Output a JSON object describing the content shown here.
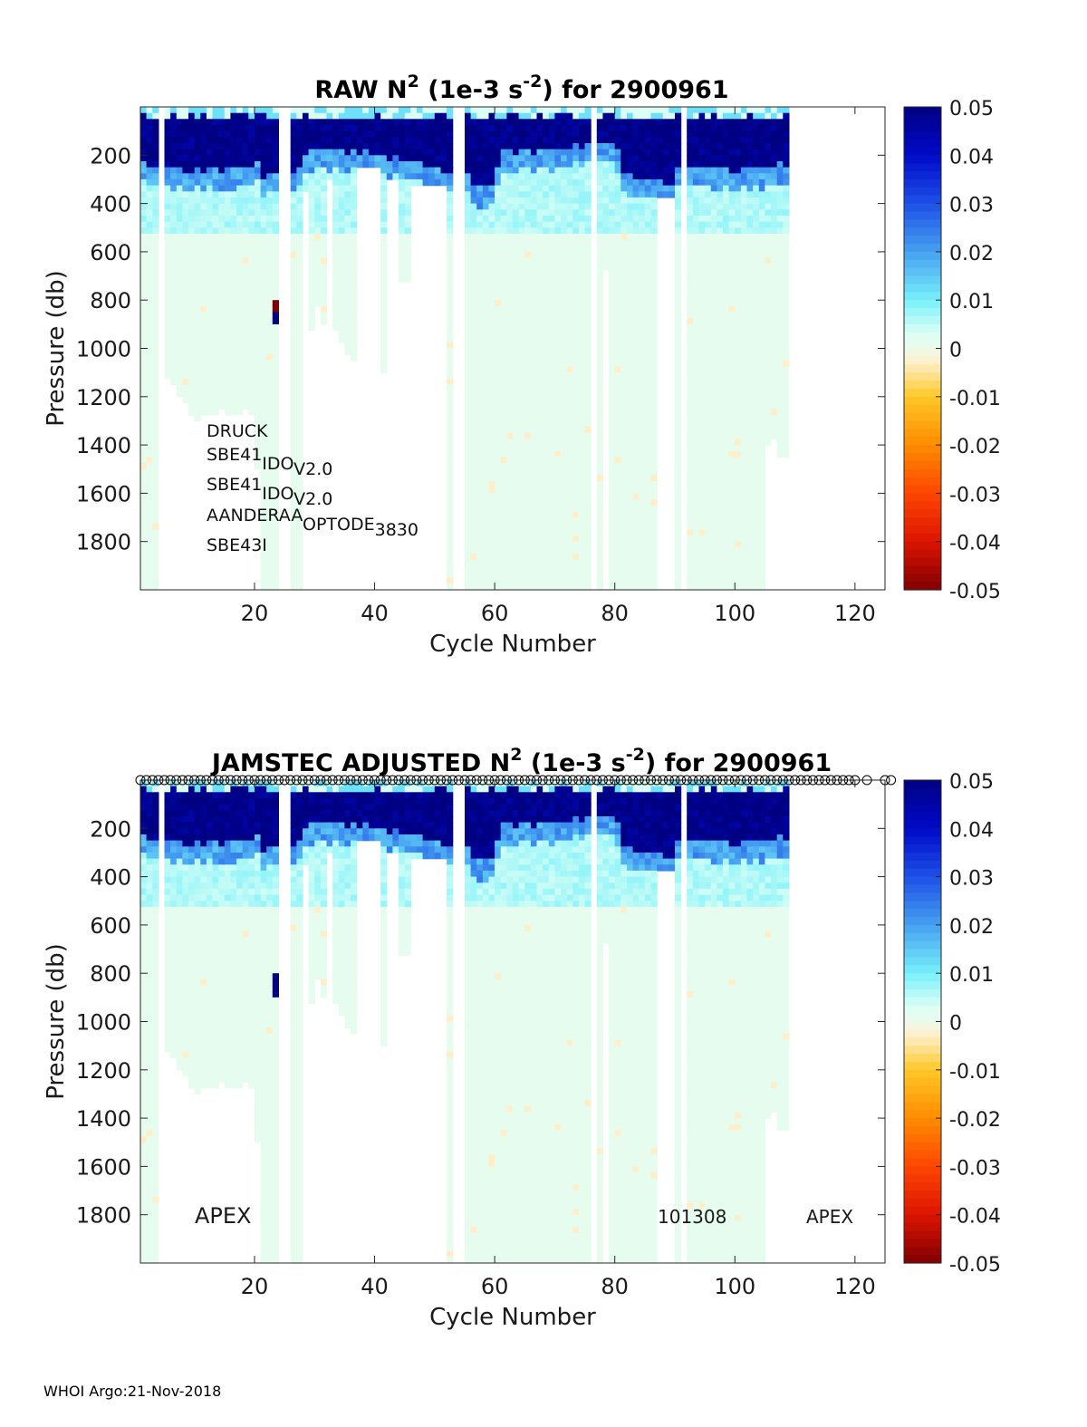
{
  "footer": "WHOI Argo:21-Nov-2018",
  "colorbar": {
    "ticks": [
      "0.05",
      "0.04",
      "0.03",
      "0.02",
      "0.01",
      "0",
      "-0.01",
      "-0.02",
      "-0.03",
      "-0.04",
      "-0.05"
    ],
    "range": [
      -0.05,
      0.05
    ]
  },
  "chart_data": [
    {
      "type": "heatmap",
      "title_parts": [
        "RAW N",
        "2",
        " (1e-3 s",
        "-2",
        ") for 2900961"
      ],
      "xlabel": "Cycle Number",
      "ylabel": "Pressure (db)",
      "xlim": [
        1,
        125
      ],
      "ylim": [
        0,
        2000
      ],
      "y_reversed": true,
      "x_ticks": [
        "20",
        "40",
        "60",
        "80",
        "100",
        "120"
      ],
      "y_ticks": [
        "200",
        "400",
        "600",
        "800",
        "1000",
        "1200",
        "1400",
        "1600",
        "1800"
      ],
      "color_range": [
        -0.05,
        0.05
      ],
      "sensor_labels": [
        "DRUCK",
        "SBE41_IDO_V2.0",
        "SBE41_IDO_V2.0",
        "AANDERAA_OPTODE_3830",
        "SBE43I"
      ],
      "notes": [],
      "qc_markers": false
    },
    {
      "type": "heatmap",
      "title_parts": [
        "JAMSTEC  ADJUSTED N",
        "2",
        " (1e-3 s",
        "-2",
        ") for 2900961"
      ],
      "xlabel": "Cycle Number",
      "ylabel": "Pressure (db)",
      "xlim": [
        1,
        125
      ],
      "ylim": [
        0,
        2000
      ],
      "y_reversed": true,
      "x_ticks": [
        "20",
        "40",
        "60",
        "80",
        "100",
        "120"
      ],
      "y_ticks": [
        "200",
        "400",
        "600",
        "800",
        "1000",
        "1200",
        "1400",
        "1600",
        "1800"
      ],
      "color_range": [
        -0.05,
        0.05
      ],
      "sensor_labels": [],
      "notes": [
        "APEX",
        "101308",
        "APEX"
      ],
      "qc_markers": true
    }
  ]
}
